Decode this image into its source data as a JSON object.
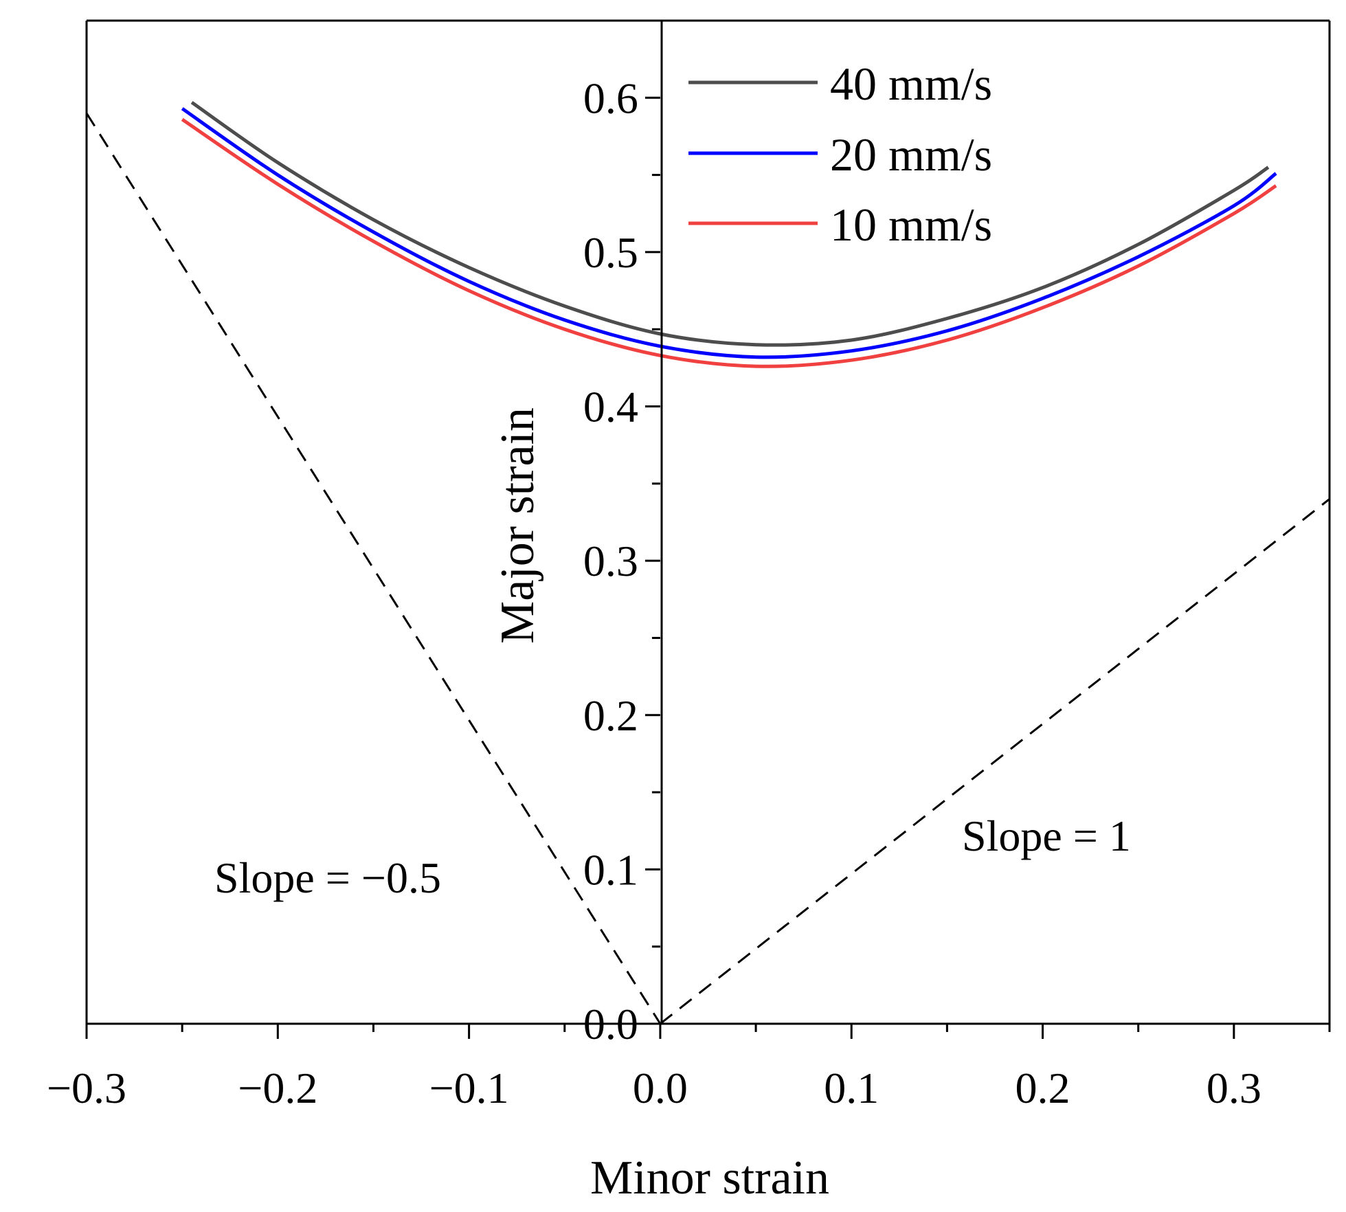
{
  "chart_data": {
    "type": "line",
    "title": "",
    "xlabel": "Minor strain",
    "ylabel": "Major strain",
    "xlim": [
      -0.3,
      0.35
    ],
    "ylim": [
      0.0,
      0.65
    ],
    "xticks": [
      -0.3,
      -0.2,
      -0.1,
      0.0,
      0.1,
      0.2,
      0.3
    ],
    "xtick_labels": [
      "−0.3",
      "−0.2",
      "−0.1",
      "0.0",
      "0.1",
      "0.2",
      "0.3"
    ],
    "yticks": [
      0.0,
      0.1,
      0.2,
      0.3,
      0.4,
      0.5,
      0.6
    ],
    "ytick_labels": [
      "0.0",
      "0.1",
      "0.2",
      "0.3",
      "0.4",
      "0.5",
      "0.6"
    ],
    "grid": false,
    "legend_position": "top-center",
    "series": [
      {
        "name": "40 mm/s",
        "color": "#4d4d4d",
        "x": [
          -0.245,
          -0.2,
          -0.15,
          -0.1,
          -0.05,
          0.0,
          0.05,
          0.1,
          0.15,
          0.2,
          0.25,
          0.3,
          0.318
        ],
        "y": [
          0.597,
          0.558,
          0.521,
          0.49,
          0.465,
          0.447,
          0.44,
          0.443,
          0.457,
          0.477,
          0.505,
          0.54,
          0.555
        ]
      },
      {
        "name": "20 mm/s",
        "color": "#0000ff",
        "x": [
          -0.25,
          -0.2,
          -0.15,
          -0.1,
          -0.05,
          0.0,
          0.05,
          0.1,
          0.15,
          0.2,
          0.25,
          0.3,
          0.322
        ],
        "y": [
          0.593,
          0.55,
          0.513,
          0.481,
          0.456,
          0.439,
          0.432,
          0.436,
          0.449,
          0.47,
          0.497,
          0.53,
          0.551
        ]
      },
      {
        "name": "10 mm/s",
        "color": "#f04040",
        "x": [
          -0.25,
          -0.2,
          -0.15,
          -0.1,
          -0.05,
          0.0,
          0.05,
          0.1,
          0.15,
          0.2,
          0.25,
          0.3,
          0.322
        ],
        "y": [
          0.586,
          0.544,
          0.507,
          0.475,
          0.45,
          0.433,
          0.426,
          0.43,
          0.443,
          0.464,
          0.491,
          0.525,
          0.543
        ]
      }
    ],
    "reference_lines": [
      {
        "name": "slope-negative-half",
        "slope": -0.5,
        "x": [
          -0.3,
          0.0
        ],
        "y": [
          0.59,
          0.0
        ],
        "style": "dashed",
        "color": "#000000"
      },
      {
        "name": "slope-one",
        "slope": 1,
        "x": [
          0.0,
          0.35
        ],
        "y": [
          0.0,
          0.34
        ],
        "style": "dashed",
        "color": "#000000"
      }
    ],
    "annotations": [
      {
        "text": "Slope = −0.5",
        "x": -0.235,
        "y": 0.093
      },
      {
        "text": "Slope = 1",
        "x": 0.157,
        "y": 0.118
      }
    ]
  }
}
